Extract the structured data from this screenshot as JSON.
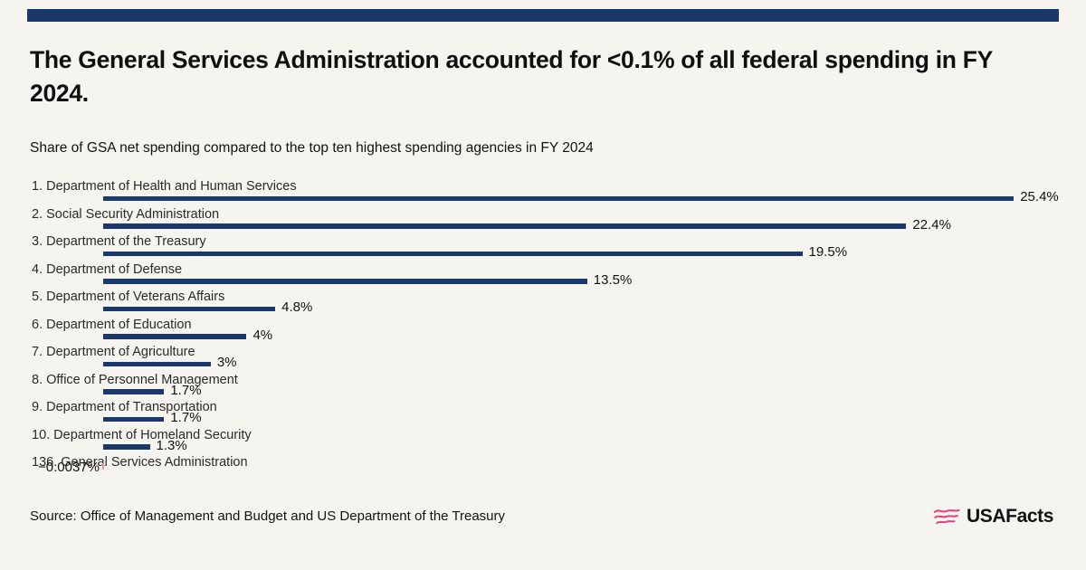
{
  "page": {
    "background": "#f5f4ee",
    "accent_color": "#1b386d"
  },
  "header": {
    "title": "The General Services Administration accounted for <0.1% of all federal spending in FY 2024.",
    "subtitle": "Share of GSA net spending compared to the top ten highest spending agencies in FY 2024"
  },
  "chart_data": {
    "type": "bar",
    "orientation": "horizontal",
    "unit": "percent",
    "categories": [
      "1. Department of Health and Human Services",
      "2. Social Security Administration",
      "3. Department of the Treasury",
      "4. Department of Defense",
      "5. Department of Veterans Affairs",
      "6. Department of Education",
      "7. Department of Agriculture",
      "8. Office of Personnel Management",
      "9. Department of Transportation",
      "10. Department of Homeland Security",
      "136. General Services Administration"
    ],
    "values": [
      25.4,
      22.4,
      19.5,
      13.5,
      4.8,
      4,
      3,
      1.7,
      1.7,
      1.3,
      -0.0037
    ],
    "value_labels": [
      "25.4%",
      "22.4%",
      "19.5%",
      "13.5%",
      "4.8%",
      "4%",
      "3%",
      "1.7%",
      "1.7%",
      "1.3%",
      "−0.0037%"
    ],
    "xlim": [
      0,
      26
    ],
    "grid": false,
    "legend": false,
    "bar_color": "#1b386d",
    "negative_bar_color": "#e2989f"
  },
  "footer": {
    "source": "Source: Office of Management and Budget and US Department of the Treasury",
    "logo_text": "USAFacts",
    "logo_icon": "usafacts-flag-icon",
    "logo_icon_color": "#e83f7d"
  }
}
